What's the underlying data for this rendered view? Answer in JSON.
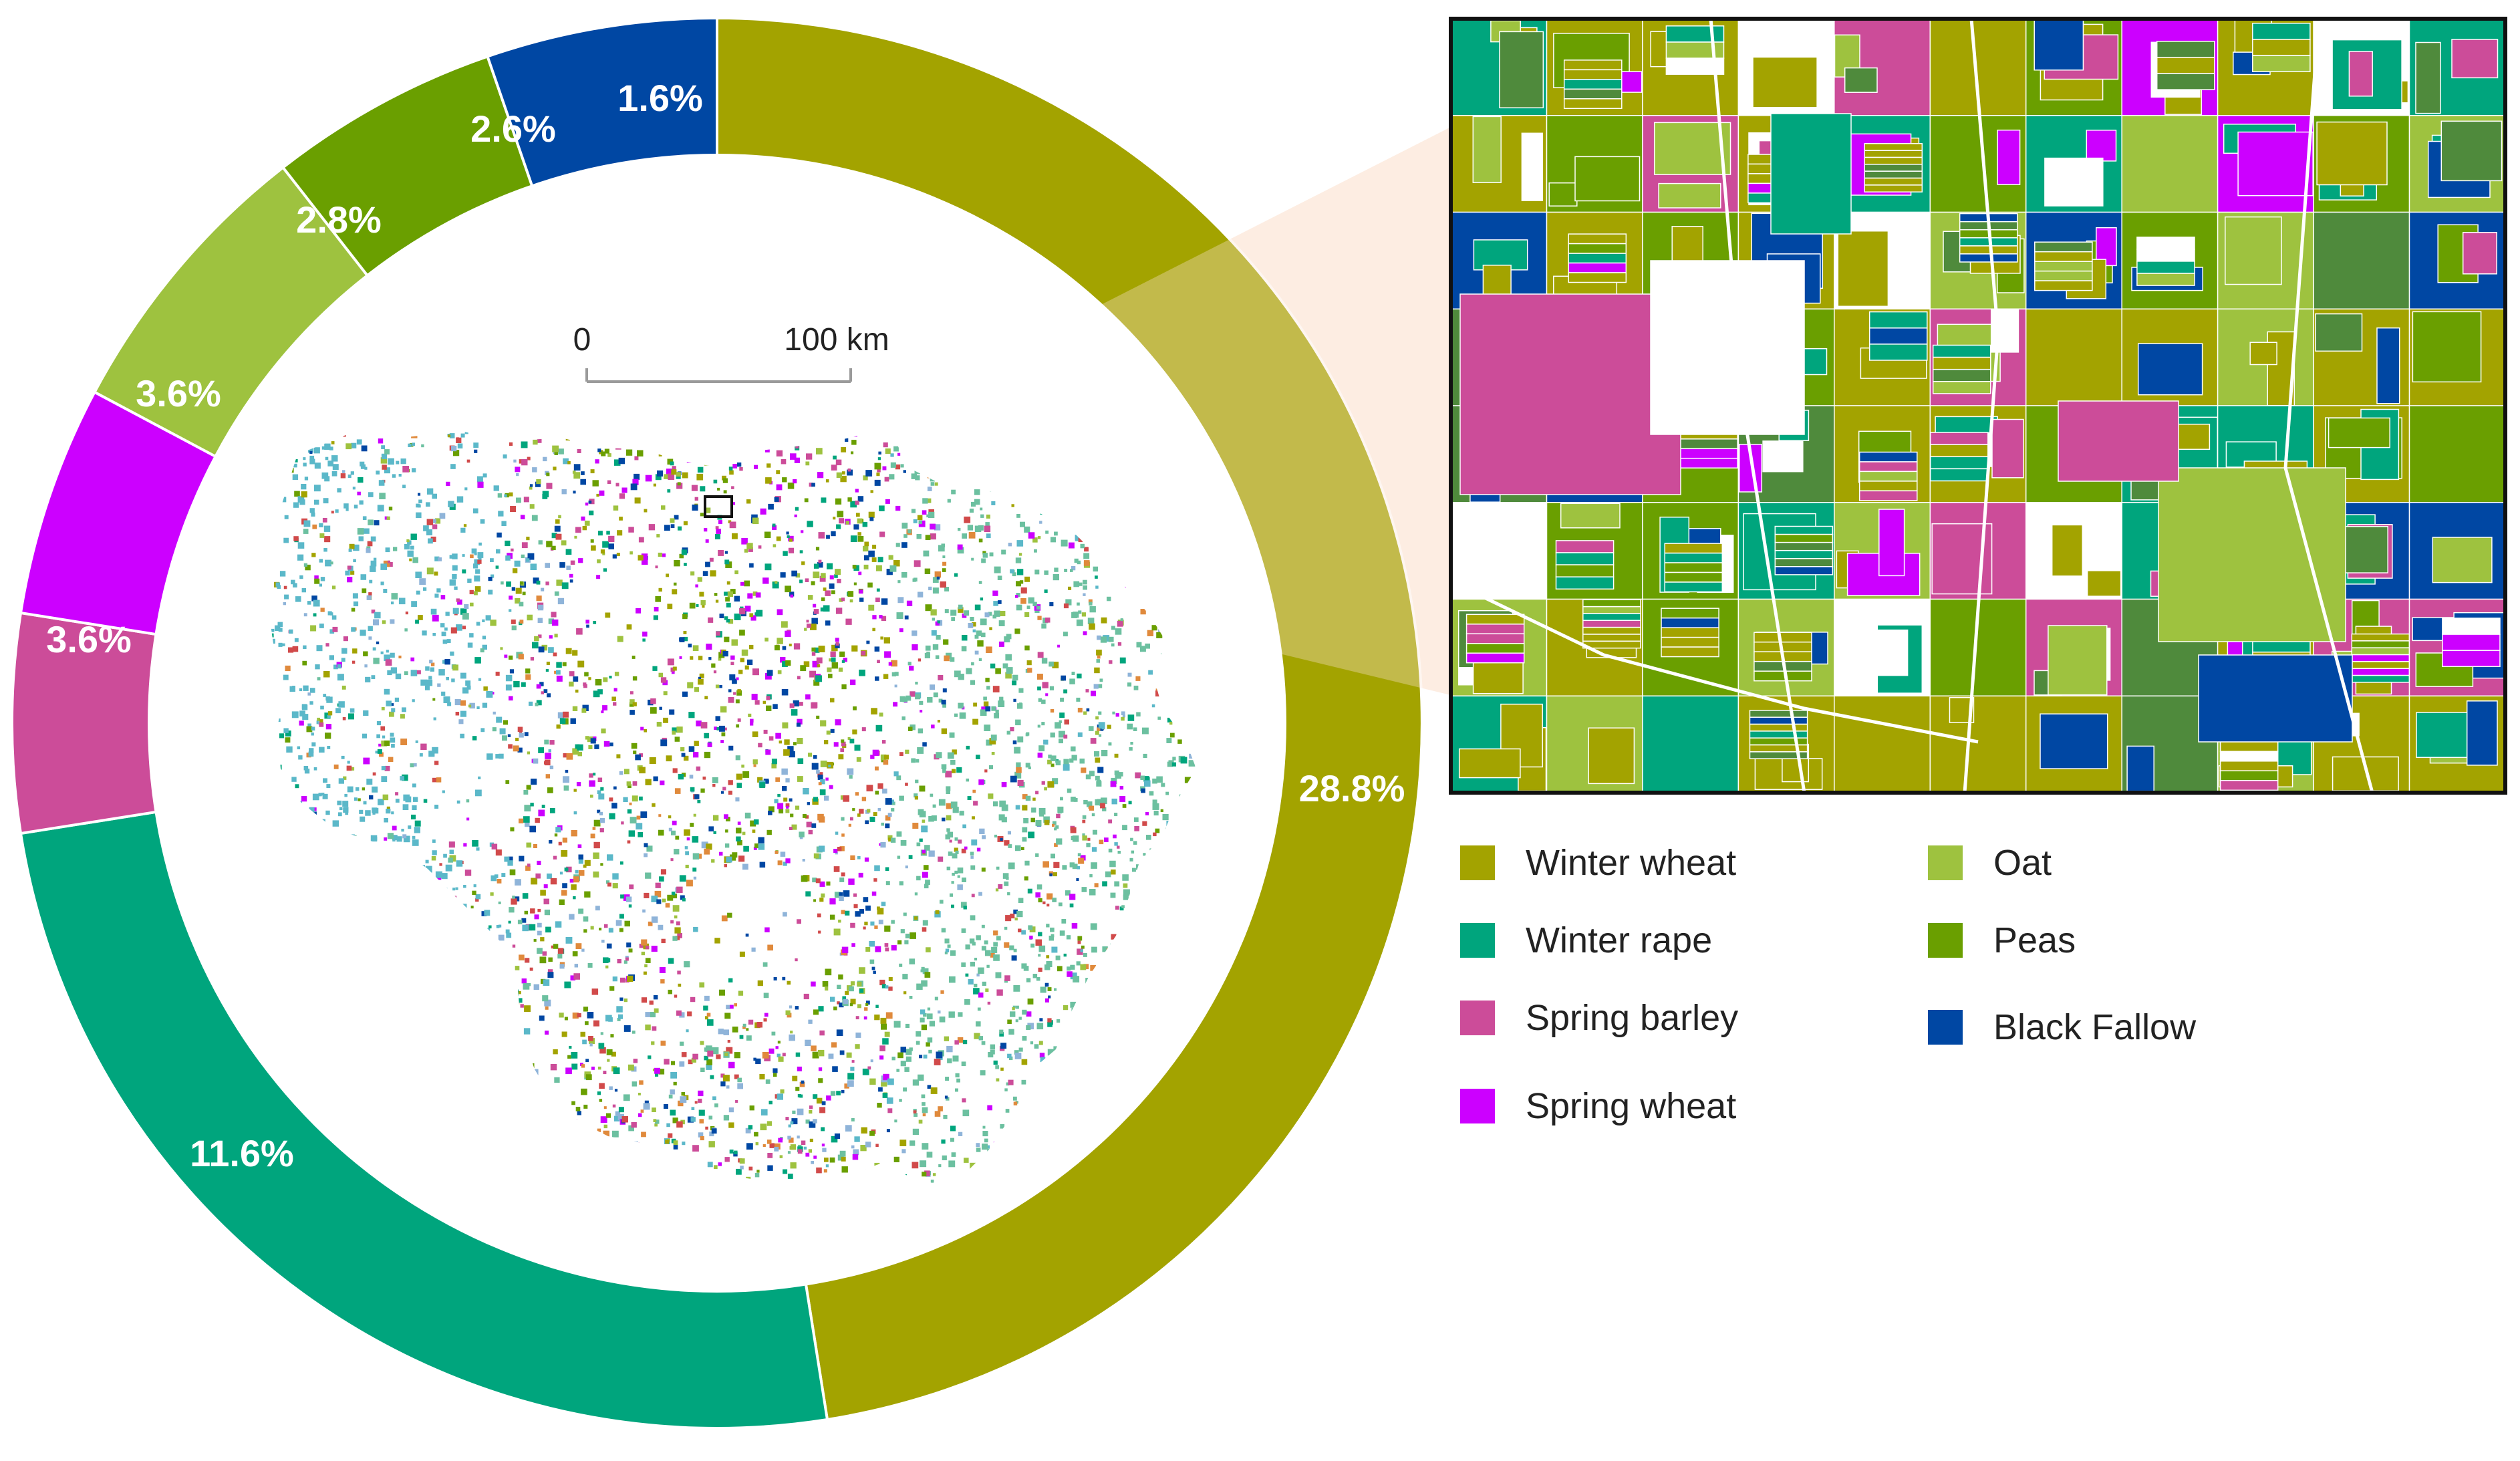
{
  "colors": {
    "winter_wheat": "#a3a300",
    "winter_rape": "#00a57d",
    "spring_barley": "#cc4c99",
    "spring_wheat": "#cc00ff",
    "oat": "#9ec23f",
    "peas": "#6a9f00",
    "black_fallow": "#0047a3"
  },
  "scale_bar": {
    "start_label": "0",
    "end_label": "100 km"
  },
  "ring": {
    "segments": [
      {
        "key": "winter_wheat",
        "label": "28.8%",
        "color": "#a3a300"
      },
      {
        "key": "winter_rape",
        "label": "11.6%",
        "color": "#00a57d"
      },
      {
        "key": "spring_barley",
        "label": "3.6%",
        "color": "#cc4c99"
      },
      {
        "key": "spring_wheat",
        "label": "3.6%",
        "color": "#cc00ff"
      },
      {
        "key": "oat",
        "label": "2.8%",
        "color": "#9ec23f"
      },
      {
        "key": "peas",
        "label": "2.6%",
        "color": "#6a9f00"
      },
      {
        "key": "black_fallow",
        "label": "1.6%",
        "color": "#0047a3"
      }
    ]
  },
  "legend": {
    "items": [
      {
        "label": "Winter wheat",
        "color": "#a3a300"
      },
      {
        "label": "Winter rape",
        "color": "#00a57d"
      },
      {
        "label": "Spring barley",
        "color": "#cc4c99"
      },
      {
        "label": "Spring wheat",
        "color": "#cc00ff"
      },
      {
        "label": "Oat",
        "color": "#9ec23f"
      },
      {
        "label": "Peas",
        "color": "#6a9f00"
      },
      {
        "label": "Black Fallow",
        "color": "#0047a3"
      }
    ]
  }
}
